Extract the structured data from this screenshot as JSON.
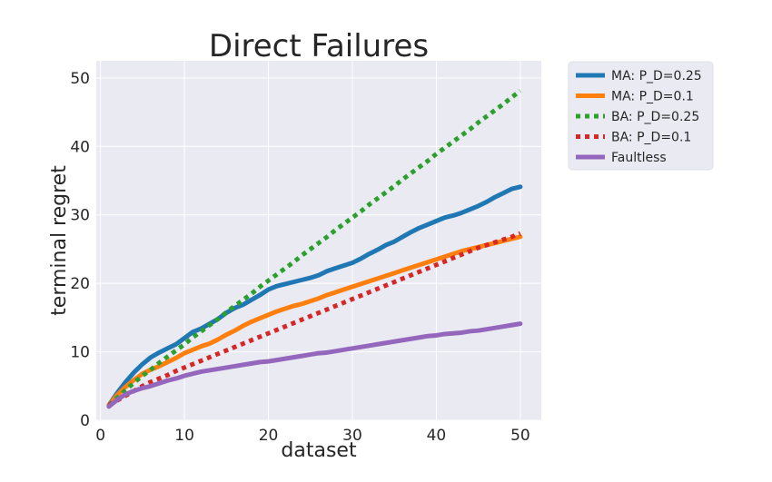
{
  "chart_data": {
    "type": "line",
    "title": "Direct Failures",
    "xlabel": "dataset",
    "ylabel": "terminal regret",
    "xlim": [
      -0.5,
      52.5
    ],
    "ylim": [
      0,
      52.5
    ],
    "xticks": [
      0,
      10,
      20,
      30,
      40,
      50
    ],
    "yticks": [
      0,
      10,
      20,
      30,
      40,
      50
    ],
    "grid": true,
    "legend_position": "outside-top-right",
    "x": [
      1,
      2,
      3,
      4,
      5,
      6,
      7,
      8,
      9,
      10,
      11,
      12,
      13,
      14,
      15,
      16,
      17,
      18,
      19,
      20,
      21,
      22,
      23,
      24,
      25,
      26,
      27,
      28,
      29,
      30,
      31,
      32,
      33,
      34,
      35,
      36,
      37,
      38,
      39,
      40,
      41,
      42,
      43,
      44,
      45,
      46,
      47,
      48,
      49,
      50
    ],
    "series": [
      {
        "name": "MA: P_D=0.25",
        "color": "#1f77b4",
        "dash": "solid",
        "values": [
          2.2,
          4.0,
          5.6,
          7.0,
          8.2,
          9.2,
          9.9,
          10.5,
          11.1,
          12.0,
          12.9,
          13.4,
          14.1,
          14.8,
          15.7,
          16.4,
          16.9,
          17.6,
          18.3,
          19.1,
          19.6,
          19.9,
          20.2,
          20.5,
          20.8,
          21.2,
          21.8,
          22.2,
          22.6,
          23.0,
          23.6,
          24.3,
          24.9,
          25.6,
          26.1,
          26.8,
          27.5,
          28.1,
          28.6,
          29.1,
          29.6,
          29.9,
          30.3,
          30.8,
          31.3,
          31.9,
          32.6,
          33.2,
          33.8,
          34.1
        ]
      },
      {
        "name": "MA: P_D=0.1",
        "color": "#ff7f0e",
        "dash": "solid",
        "values": [
          2.2,
          3.7,
          4.9,
          5.9,
          6.8,
          7.4,
          7.9,
          8.5,
          9.1,
          9.8,
          10.3,
          10.8,
          11.2,
          11.8,
          12.5,
          13.1,
          13.8,
          14.4,
          14.9,
          15.4,
          15.9,
          16.3,
          16.7,
          17.0,
          17.4,
          17.8,
          18.3,
          18.7,
          19.1,
          19.5,
          19.9,
          20.3,
          20.7,
          21.1,
          21.5,
          21.9,
          22.3,
          22.7,
          23.1,
          23.5,
          23.9,
          24.3,
          24.7,
          25.0,
          25.3,
          25.6,
          25.9,
          26.2,
          26.5,
          26.8
        ]
      },
      {
        "name": "BA: P_D=0.25",
        "color": "#2ca02c",
        "dash": "dotted",
        "values": [
          2.2,
          3.3,
          4.4,
          5.5,
          6.5,
          7.4,
          8.4,
          9.3,
          10.2,
          11.1,
          12.1,
          13.0,
          13.9,
          14.8,
          15.8,
          16.7,
          17.6,
          18.5,
          19.5,
          20.4,
          21.3,
          22.2,
          23.1,
          24.1,
          25.0,
          25.9,
          26.8,
          27.8,
          28.7,
          29.6,
          30.5,
          31.5,
          32.4,
          33.3,
          34.2,
          35.2,
          36.1,
          37.0,
          37.9,
          38.9,
          39.8,
          40.7,
          41.6,
          42.5,
          43.5,
          44.4,
          45.3,
          46.2,
          47.2,
          48.1
        ]
      },
      {
        "name": "BA: P_D=0.1",
        "color": "#d62728",
        "dash": "dotted",
        "values": [
          2.2,
          2.9,
          3.6,
          4.3,
          5.0,
          5.6,
          6.1,
          6.6,
          7.2,
          7.7,
          8.2,
          8.7,
          9.2,
          9.7,
          10.2,
          10.7,
          11.2,
          11.7,
          12.2,
          12.7,
          13.2,
          13.7,
          14.2,
          14.7,
          15.2,
          15.7,
          16.2,
          16.7,
          17.2,
          17.7,
          18.2,
          18.7,
          19.2,
          19.7,
          20.2,
          20.7,
          21.2,
          21.7,
          22.2,
          22.7,
          23.2,
          23.7,
          24.2,
          24.7,
          25.2,
          25.6,
          26.0,
          26.4,
          26.8,
          27.3
        ]
      },
      {
        "name": "Faultless",
        "color": "#9467bd",
        "dash": "solid",
        "values": [
          2.0,
          3.0,
          3.8,
          4.3,
          4.7,
          5.0,
          5.4,
          5.8,
          6.1,
          6.5,
          6.8,
          7.1,
          7.3,
          7.5,
          7.7,
          7.9,
          8.1,
          8.3,
          8.5,
          8.6,
          8.8,
          9.0,
          9.2,
          9.4,
          9.6,
          9.8,
          9.9,
          10.1,
          10.3,
          10.5,
          10.7,
          10.9,
          11.1,
          11.3,
          11.5,
          11.7,
          11.9,
          12.1,
          12.3,
          12.4,
          12.6,
          12.7,
          12.8,
          13.0,
          13.1,
          13.3,
          13.5,
          13.7,
          13.9,
          14.1
        ]
      }
    ]
  }
}
